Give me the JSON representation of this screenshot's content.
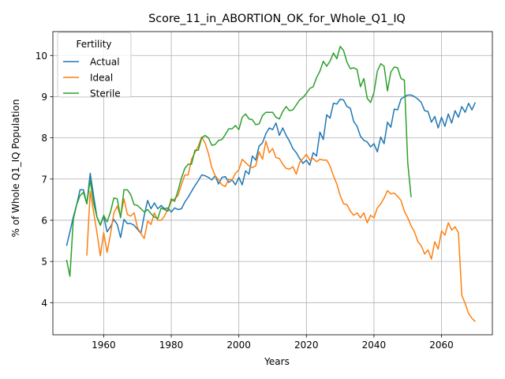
{
  "chart_data": {
    "type": "line",
    "title": "Score_11_in_ABORTION_OK_for_Whole_Q1_IQ",
    "xlabel": "Years",
    "ylabel": "% of Whole Q1_IQ Population",
    "xlim": [
      1944.95,
      2075.05
    ],
    "ylim": [
      3.22,
      10.58
    ],
    "xticks": [
      1960,
      1980,
      2000,
      2020,
      2040,
      2060
    ],
    "yticks": [
      4,
      5,
      6,
      7,
      8,
      9,
      10
    ],
    "grid": true,
    "legend": {
      "title": "Fertility",
      "placement": "top-left"
    },
    "series": [
      {
        "name": "Actual",
        "color": "#1f77b4",
        "x": [
          1949,
          1950,
          1951,
          1952,
          1953,
          1954,
          1955,
          1956,
          1957,
          1958,
          1959,
          1960,
          1961,
          1962,
          1963,
          1964,
          1965,
          1966,
          1967,
          1968,
          1969,
          1970,
          1971,
          1972,
          1973,
          1974,
          1975,
          1976,
          1977,
          1978,
          1979,
          1980,
          1981,
          1982,
          1983,
          1984,
          1985,
          1986,
          1987,
          1988,
          1989,
          1990,
          1991,
          1992,
          1993,
          1994,
          1995,
          1996,
          1997,
          1998,
          1999,
          2000,
          2001,
          2002,
          2003,
          2004,
          2005,
          2006,
          2007,
          2008,
          2009,
          2010,
          2011,
          2012,
          2013,
          2014,
          2015,
          2016,
          2017,
          2018,
          2019,
          2020,
          2021,
          2022,
          2023,
          2024,
          2025,
          2026,
          2027,
          2028,
          2029,
          2030,
          2031,
          2032,
          2033,
          2034,
          2035,
          2036,
          2037,
          2038,
          2039,
          2040,
          2041,
          2042,
          2043,
          2044,
          2045,
          2046,
          2047,
          2048,
          2049,
          2050,
          2051,
          2052,
          2053,
          2054,
          2055,
          2056,
          2057,
          2058,
          2059,
          2060,
          2061,
          2062,
          2063,
          2064,
          2065,
          2066,
          2067,
          2068,
          2069,
          2070
        ],
        "values": [
          5.38,
          5.72,
          6.08,
          6.38,
          6.74,
          6.74,
          6.4,
          7.14,
          6.6,
          6.08,
          5.88,
          6.1,
          5.72,
          5.84,
          6.02,
          5.9,
          5.58,
          6.02,
          5.92,
          5.92,
          5.88,
          5.78,
          5.68,
          6.12,
          6.48,
          6.28,
          6.42,
          6.28,
          6.36,
          6.28,
          6.3,
          6.2,
          6.3,
          6.26,
          6.28,
          6.44,
          6.56,
          6.7,
          6.84,
          6.96,
          7.1,
          7.08,
          7.04,
          6.98,
          7.08,
          6.88,
          7.04,
          7.06,
          6.92,
          6.98,
          6.86,
          7.04,
          6.86,
          7.2,
          7.12,
          7.56,
          7.46,
          7.8,
          7.88,
          8.1,
          8.24,
          8.2,
          8.36,
          8.06,
          8.24,
          8.06,
          7.92,
          7.74,
          7.64,
          7.5,
          7.38,
          7.46,
          7.34,
          7.64,
          7.56,
          8.14,
          7.96,
          8.56,
          8.48,
          8.84,
          8.82,
          8.94,
          8.92,
          8.76,
          8.72,
          8.4,
          8.28,
          8.04,
          7.94,
          7.9,
          7.78,
          7.86,
          7.66,
          8.02,
          7.86,
          8.38,
          8.26,
          8.7,
          8.68,
          8.94,
          9.0,
          9.04,
          9.04,
          9.0,
          8.94,
          8.86,
          8.66,
          8.64,
          8.38,
          8.52,
          8.24,
          8.5,
          8.28,
          8.58,
          8.36,
          8.66,
          8.5,
          8.76,
          8.62,
          8.84,
          8.68,
          8.86
        ]
      },
      {
        "name": "Ideal",
        "color": "#ff7f0e",
        "x": [
          1955,
          1956,
          1957,
          1958,
          1959,
          1960,
          1961,
          1962,
          1963,
          1964,
          1965,
          1966,
          1967,
          1968,
          1969,
          1970,
          1971,
          1972,
          1973,
          1974,
          1975,
          1976,
          1977,
          1978,
          1979,
          1980,
          1981,
          1982,
          1983,
          1984,
          1985,
          1986,
          1987,
          1988,
          1989,
          1990,
          1991,
          1992,
          1993,
          1994,
          1995,
          1996,
          1997,
          1998,
          1999,
          2000,
          2001,
          2002,
          2003,
          2004,
          2005,
          2006,
          2007,
          2008,
          2009,
          2010,
          2011,
          2012,
          2013,
          2014,
          2015,
          2016,
          2017,
          2018,
          2019,
          2020,
          2021,
          2022,
          2023,
          2024,
          2025,
          2026,
          2027,
          2028,
          2029,
          2030,
          2031,
          2032,
          2033,
          2034,
          2035,
          2036,
          2037,
          2038,
          2039,
          2040,
          2041,
          2042,
          2043,
          2044,
          2045,
          2046,
          2047,
          2048,
          2049,
          2050,
          2051,
          2052,
          2053,
          2054,
          2055,
          2056,
          2057,
          2058,
          2059,
          2060,
          2061,
          2062,
          2063,
          2064,
          2065,
          2066,
          2067,
          2068,
          2069,
          2070
        ],
        "values": [
          5.14,
          6.7,
          6.2,
          5.7,
          5.14,
          5.7,
          5.22,
          5.66,
          6.18,
          6.34,
          6.1,
          6.52,
          6.14,
          6.1,
          6.18,
          5.82,
          5.68,
          5.56,
          5.98,
          5.9,
          6.18,
          6.0,
          6.0,
          6.1,
          6.28,
          6.46,
          6.52,
          6.6,
          6.86,
          7.1,
          7.1,
          7.48,
          7.64,
          7.8,
          8.02,
          7.88,
          7.62,
          7.28,
          7.08,
          6.98,
          6.86,
          6.82,
          7.0,
          6.98,
          7.14,
          7.22,
          7.48,
          7.4,
          7.32,
          7.28,
          7.32,
          7.66,
          7.48,
          7.92,
          7.64,
          7.74,
          7.52,
          7.5,
          7.36,
          7.26,
          7.24,
          7.3,
          7.12,
          7.4,
          7.5,
          7.6,
          7.46,
          7.5,
          7.42,
          7.48,
          7.46,
          7.46,
          7.32,
          7.08,
          6.88,
          6.6,
          6.4,
          6.38,
          6.22,
          6.12,
          6.18,
          6.06,
          6.18,
          5.94,
          6.12,
          6.06,
          6.3,
          6.4,
          6.54,
          6.72,
          6.64,
          6.66,
          6.58,
          6.48,
          6.22,
          6.06,
          5.86,
          5.72,
          5.48,
          5.38,
          5.18,
          5.28,
          5.06,
          5.48,
          5.3,
          5.74,
          5.64,
          5.94,
          5.76,
          5.84,
          5.7,
          4.18,
          3.98,
          3.74,
          3.62,
          3.54
        ]
      },
      {
        "name": "Sterile",
        "color": "#2ca02c",
        "x": [
          1949,
          1950,
          1951,
          1952,
          1953,
          1954,
          1955,
          1956,
          1957,
          1958,
          1959,
          1960,
          1961,
          1962,
          1963,
          1964,
          1965,
          1966,
          1967,
          1968,
          1969,
          1970,
          1971,
          1972,
          1973,
          1974,
          1975,
          1976,
          1977,
          1978,
          1979,
          1980,
          1981,
          1982,
          1983,
          1984,
          1985,
          1986,
          1987,
          1988,
          1989,
          1990,
          1991,
          1992,
          1993,
          1994,
          1995,
          1996,
          1997,
          1998,
          1999,
          2000,
          2001,
          2002,
          2003,
          2004,
          2005,
          2006,
          2007,
          2008,
          2009,
          2010,
          2011,
          2012,
          2013,
          2014,
          2015,
          2016,
          2017,
          2018,
          2019,
          2020,
          2021,
          2022,
          2023,
          2024,
          2025,
          2026,
          2027,
          2028,
          2029,
          2030,
          2031,
          2032,
          2033,
          2034,
          2035,
          2036,
          2037,
          2038,
          2039,
          2040,
          2041,
          2042,
          2043,
          2044,
          2045,
          2046,
          2047,
          2048,
          2049,
          2050,
          2051
        ],
        "values": [
          5.04,
          4.64,
          6.02,
          6.38,
          6.6,
          6.68,
          6.4,
          6.98,
          6.42,
          6.08,
          5.88,
          6.12,
          5.96,
          6.2,
          6.54,
          6.52,
          6.06,
          6.74,
          6.74,
          6.62,
          6.38,
          6.36,
          6.28,
          6.2,
          6.26,
          6.16,
          6.08,
          6.04,
          6.3,
          6.26,
          6.22,
          6.52,
          6.46,
          6.72,
          7.02,
          7.26,
          7.36,
          7.36,
          7.7,
          7.7,
          8.0,
          8.06,
          8.0,
          7.82,
          7.84,
          7.94,
          7.96,
          8.08,
          8.22,
          8.22,
          8.3,
          8.2,
          8.5,
          8.58,
          8.46,
          8.44,
          8.32,
          8.34,
          8.54,
          8.62,
          8.62,
          8.62,
          8.5,
          8.46,
          8.64,
          8.76,
          8.66,
          8.68,
          8.8,
          8.92,
          8.98,
          9.08,
          9.2,
          9.24,
          9.46,
          9.62,
          9.86,
          9.74,
          9.86,
          10.06,
          9.92,
          10.22,
          10.12,
          9.84,
          9.68,
          9.7,
          9.66,
          9.24,
          9.44,
          8.96,
          8.86,
          9.1,
          9.62,
          9.8,
          9.74,
          9.14,
          9.6,
          9.72,
          9.7,
          9.44,
          9.4,
          7.4,
          6.56
        ]
      }
    ]
  }
}
